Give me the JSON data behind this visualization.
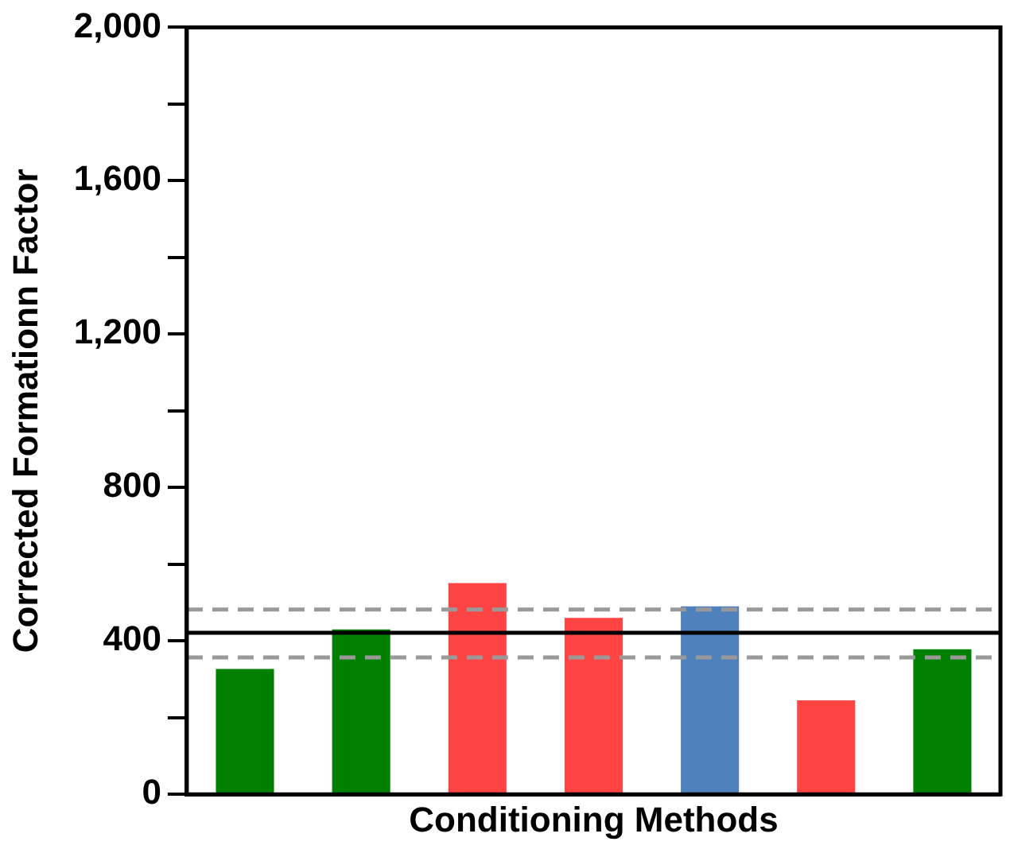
{
  "chart_data": {
    "type": "bar",
    "xlabel": "Conditioning Methods",
    "ylabel": "Corrected Formationn Factor",
    "categories": [
      null,
      null,
      null,
      null,
      null,
      null,
      null
    ],
    "values": [
      327,
      430,
      551,
      460,
      490,
      245,
      378
    ],
    "colors": [
      "#008000",
      "#008000",
      "#ff4444",
      "#ff4444",
      "#4f81bd",
      "#ff4444",
      "#008000"
    ],
    "ylim": [
      0,
      2000
    ],
    "yticks": [
      {
        "value": 0,
        "label": "0"
      },
      {
        "value": 200,
        "label": null
      },
      {
        "value": 400,
        "label": "400"
      },
      {
        "value": 600,
        "label": null
      },
      {
        "value": 800,
        "label": "800"
      },
      {
        "value": 1000,
        "label": null
      },
      {
        "value": 1200,
        "label": "1,200"
      },
      {
        "value": 1400,
        "label": null
      },
      {
        "value": 1600,
        "label": "1,600"
      },
      {
        "value": 1800,
        "label": null
      },
      {
        "value": 2000,
        "label": "2,000"
      }
    ],
    "ref_lines": [
      {
        "axis": "y",
        "value": 421,
        "color": "#000000",
        "line_style": "solid"
      },
      {
        "axis": "y",
        "value": 482,
        "color": "#999999",
        "line_style": "dashed"
      },
      {
        "axis": "y",
        "value": 357,
        "color": "#999999",
        "line_style": "dashed"
      }
    ],
    "grid": false,
    "legend": false,
    "tick_labels": "y"
  }
}
